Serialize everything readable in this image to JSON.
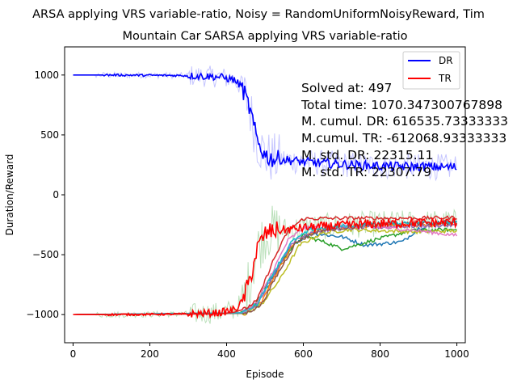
{
  "chart_data": {
    "type": "line",
    "title": "ARSA applying VRS variable-ratio, Noisy = RandomUniformNoisyReward, Tim",
    "subtitle": "Mountain Car SARSA applying VRS variable-ratio",
    "xlabel": "Episode",
    "ylabel": "Duration/Reward",
    "xlim": [
      -22,
      1022
    ],
    "ylim": [
      -1235,
      1235
    ],
    "xticks": [
      0,
      200,
      400,
      600,
      800,
      1000
    ],
    "yticks": [
      -1000,
      -500,
      0,
      500,
      1000
    ],
    "grid": false,
    "legend_position": "top-right",
    "annotations": [
      "Solved at: 497",
      "Total time: 1070.347300767898",
      "M. cumul. DR: 616535.73333333",
      "M.cumul. TR: -612068.93333333",
      "M. std. DR: 22315.11",
      "M. std. TR: 22307.79"
    ],
    "series": [
      {
        "name": "DR",
        "color": "#0000ff",
        "x": [
          0,
          100,
          200,
          300,
          380,
          420,
          440,
          460,
          480,
          500,
          520,
          560,
          600,
          700,
          800,
          900,
          1000
        ],
        "values": [
          1000,
          1000,
          998,
          995,
          985,
          960,
          900,
          720,
          450,
          330,
          300,
          290,
          275,
          255,
          240,
          235,
          230
        ]
      },
      {
        "name": "TR",
        "color": "#ff0000",
        "x": [
          0,
          100,
          200,
          300,
          380,
          420,
          440,
          460,
          480,
          500,
          520,
          560,
          600,
          700,
          800,
          900,
          1000
        ],
        "values": [
          -1000,
          -1000,
          -998,
          -995,
          -985,
          -960,
          -900,
          -720,
          -450,
          -330,
          -300,
          -290,
          -275,
          -255,
          -240,
          -235,
          -230
        ]
      }
    ],
    "extra_series": [
      {
        "color": "#1f77b4",
        "x": [
          0,
          440,
          470,
          520,
          570,
          620,
          700,
          760,
          800,
          860,
          900,
          950,
          1000
        ],
        "values": [
          -1000,
          -985,
          -940,
          -700,
          -420,
          -320,
          -350,
          -420,
          -410,
          -390,
          -280,
          -230,
          -220
        ]
      },
      {
        "color": "#2ca02c",
        "x": [
          0,
          430,
          470,
          510,
          560,
          600,
          660,
          700,
          740,
          780,
          820,
          880,
          1000
        ],
        "values": [
          -1000,
          -990,
          -930,
          -720,
          -480,
          -340,
          -400,
          -450,
          -420,
          -380,
          -350,
          -300,
          -290
        ]
      },
      {
        "color": "#ff7f0e",
        "x": [
          0,
          450,
          490,
          530,
          580,
          640,
          700,
          800,
          900,
          1000
        ],
        "values": [
          -1000,
          -990,
          -900,
          -650,
          -380,
          -290,
          -270,
          -260,
          -255,
          -250
        ]
      },
      {
        "color": "#bcbd22",
        "x": [
          0,
          450,
          490,
          540,
          590,
          650,
          720,
          800,
          900,
          1000
        ],
        "values": [
          -1000,
          -990,
          -920,
          -700,
          -420,
          -320,
          -290,
          -300,
          -310,
          -300
        ]
      },
      {
        "color": "#9467bd",
        "x": [
          0,
          440,
          480,
          520,
          570,
          620,
          700,
          800,
          900,
          1000
        ],
        "values": [
          -1000,
          -985,
          -910,
          -680,
          -400,
          -310,
          -280,
          -270,
          -260,
          -255
        ]
      },
      {
        "color": "#e377c2",
        "x": [
          0,
          440,
          480,
          520,
          560,
          600,
          700,
          800,
          900,
          1000
        ],
        "values": [
          -1000,
          -985,
          -900,
          -640,
          -380,
          -280,
          -260,
          -270,
          -300,
          -340
        ]
      },
      {
        "color": "#8c564b",
        "x": [
          0,
          450,
          490,
          530,
          580,
          640,
          720,
          800,
          900,
          1000
        ],
        "values": [
          -1000,
          -990,
          -920,
          -680,
          -400,
          -300,
          -270,
          -250,
          -240,
          -235
        ]
      },
      {
        "color": "#17becf",
        "x": [
          0,
          440,
          480,
          520,
          570,
          620,
          700,
          800,
          900,
          1000
        ],
        "values": [
          -1000,
          -985,
          -910,
          -660,
          -390,
          -290,
          -260,
          -240,
          -230,
          -225
        ]
      },
      {
        "color": "#d62728",
        "x": [
          0,
          380,
          420,
          450,
          480,
          520,
          560,
          600,
          700,
          800,
          900,
          1000
        ],
        "values": [
          -1000,
          -995,
          -980,
          -950,
          -880,
          -560,
          -300,
          -200,
          -195,
          -195,
          -195,
          -190
        ]
      }
    ]
  }
}
